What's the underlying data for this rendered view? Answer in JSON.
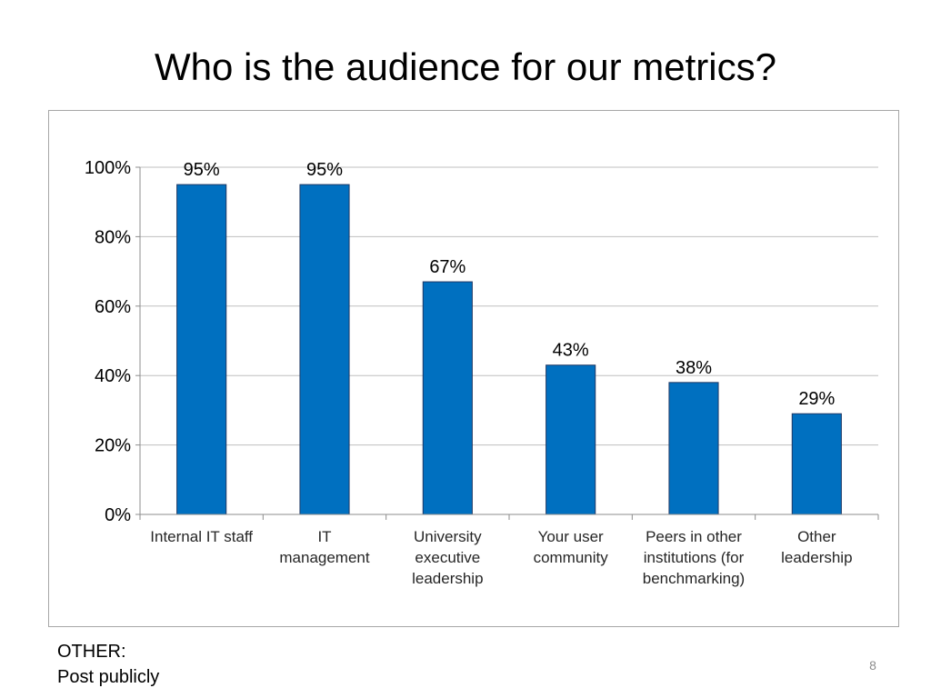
{
  "slide": {
    "title": "Who is the audience for our metrics?",
    "note_heading": "OTHER:",
    "note_text": "Post publicly",
    "page_number": "8"
  },
  "chart_data": {
    "type": "bar",
    "categories": [
      [
        "Internal IT staff"
      ],
      [
        "IT",
        "management"
      ],
      [
        "University",
        "executive",
        "leadership"
      ],
      [
        "Your user",
        "community"
      ],
      [
        "Peers in other",
        "institutions (for",
        "benchmarking)"
      ],
      [
        "Other",
        "leadership"
      ]
    ],
    "values": [
      95,
      95,
      67,
      43,
      38,
      29
    ],
    "data_labels": [
      "95%",
      "95%",
      "67%",
      "43%",
      "38%",
      "29%"
    ],
    "yticks": [
      0,
      20,
      40,
      60,
      80,
      100
    ],
    "ytick_labels": [
      "0%",
      "20%",
      "40%",
      "60%",
      "80%",
      "100%"
    ],
    "ylim": [
      0,
      100
    ],
    "grid": true,
    "bar_color": "#0070c0",
    "bar_edge_color": "#1f3864",
    "grid_color": "#bfbfbf"
  }
}
